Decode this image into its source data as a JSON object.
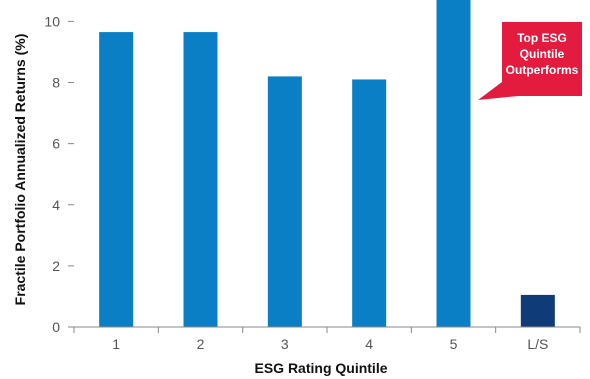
{
  "chart_data": {
    "type": "bar",
    "categories": [
      "1",
      "2",
      "3",
      "4",
      "5",
      "L/S"
    ],
    "values": [
      9.65,
      9.65,
      8.2,
      8.1,
      10.9,
      1.05
    ],
    "xlabel": "ESG Rating Quintile",
    "ylabel": "Fractile Portfolio Annualized Returns (%)",
    "ylim": [
      0,
      10.7
    ],
    "yticks": [
      0,
      2,
      4,
      6,
      8,
      10
    ],
    "grid": false,
    "colors": {
      "quintile_bar": "#0a7fc6",
      "long_short_bar": "#0f3c78",
      "callout": "#e31b3f"
    },
    "annotation": {
      "lines": [
        "Top ESG",
        "Quintile",
        "Outperforms"
      ],
      "points_to_category": "5"
    }
  }
}
